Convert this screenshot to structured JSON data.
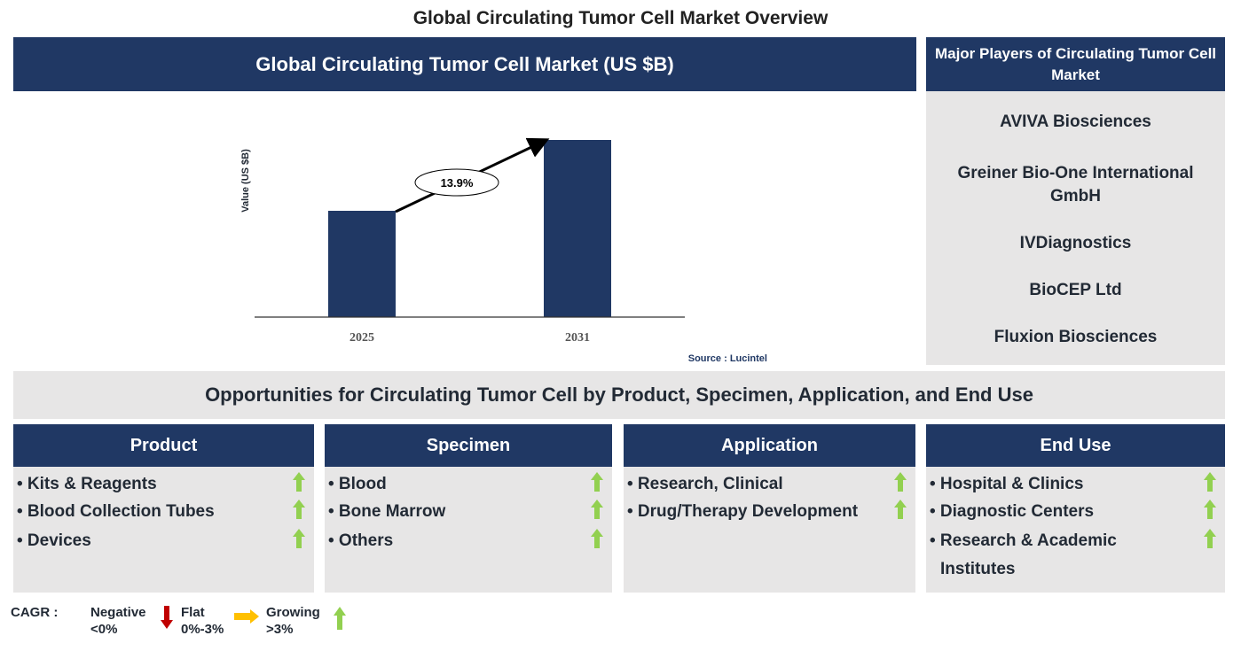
{
  "title": "Global Circulating Tumor Cell Market Overview",
  "chart_panel": {
    "header": "Global Circulating Tumor Cell Market (US $B)",
    "source": "Source : Lucintel"
  },
  "chart_data": {
    "type": "bar",
    "title": "Global Circulating Tumor Cell Market (US $B)",
    "ylabel": "Value (US $B)",
    "categories": [
      "2025",
      "2031"
    ],
    "values": [
      0.6,
      1.0
    ],
    "values_note": "relative bar heights; no axis values printed",
    "annotation": "13.9%",
    "bar_color": "#203864",
    "grid": false
  },
  "players": {
    "header": "Major Players of Circulating Tumor Cell Market",
    "items": [
      "AVIVA Biosciences",
      "Greiner Bio-One International GmbH",
      "IVDiagnostics",
      "BioCEP Ltd",
      "Fluxion Biosciences"
    ]
  },
  "opportunities": {
    "header": "Opportunities for Circulating Tumor Cell by Product, Specimen, Application, and End Use",
    "columns": [
      {
        "title": "Product",
        "items": [
          "• Kits & Reagents",
          "• Blood Collection Tubes",
          "• Devices"
        ],
        "trend": "growing"
      },
      {
        "title": "Specimen",
        "items": [
          "• Blood",
          "• Bone Marrow",
          "• Others"
        ],
        "trend": "growing"
      },
      {
        "title": "Application",
        "items": [
          "• Research, Clinical",
          "• Drug/Therapy Development"
        ],
        "trend": "growing"
      },
      {
        "title": "End Use",
        "items": [
          "• Hospital & Clinics",
          "• Diagnostic Centers",
          "• Research & Academic",
          "Institutes"
        ],
        "trend": "growing"
      }
    ]
  },
  "legend": {
    "label": "CAGR  :",
    "negative": "Negative",
    "negative_range": "<0%",
    "flat": "Flat",
    "flat_range": "0%-3%",
    "growing": "Growing",
    "growing_range": ">3%"
  },
  "colors": {
    "navy": "#203864",
    "gray": "#e7e6e6",
    "growing": "#92d050",
    "flat": "#ffc000",
    "negative": "#c00000"
  }
}
